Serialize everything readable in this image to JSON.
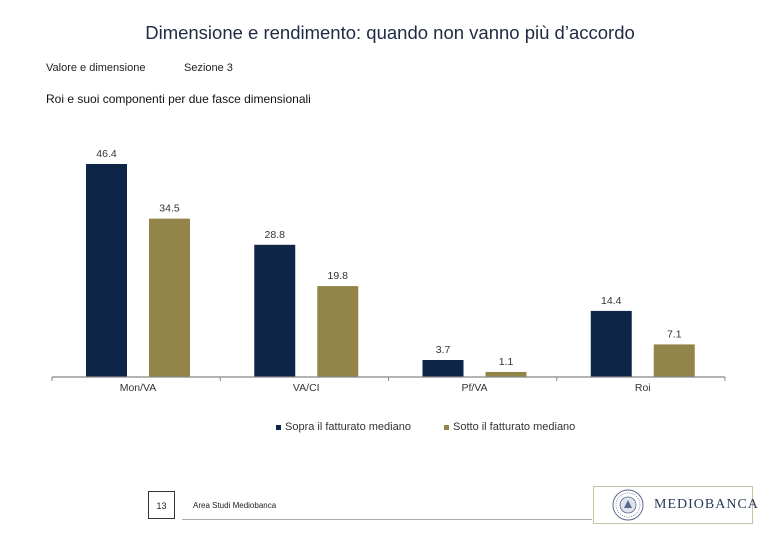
{
  "header": {
    "title": "Dimensione e rendimento: quando non vanno più d’accordo",
    "section_left": "Valore e dimensione",
    "section_right": "Sezione 3",
    "subtitle": "Roi e suoi componenti  per due fasce dimensionali"
  },
  "colors": {
    "series1": "#0d2546",
    "series2": "#938549",
    "axis": "#888888"
  },
  "chart_data": {
    "type": "bar",
    "title": "Roi e suoi componenti per due fasce dimensionali",
    "categories": [
      "Mon/VA",
      "VA/CI",
      "Pf/VA",
      "Roi"
    ],
    "series": [
      {
        "name": "Sopra il fatturato mediano",
        "values": [
          46.4,
          28.8,
          3.7,
          14.4
        ],
        "labels": [
          "46.4",
          "28.8",
          "3.7",
          "14.4"
        ]
      },
      {
        "name": "Sotto il fatturato mediano",
        "values": [
          34.5,
          19.8,
          1.1,
          7.1
        ],
        "labels": [
          "34.5",
          "19.8",
          "1.1",
          "7.1"
        ]
      }
    ],
    "ylim": [
      0,
      50
    ],
    "xlabel": "",
    "ylabel": "",
    "legend": "bottom-center",
    "grid": false
  },
  "footer": {
    "page_number": "13",
    "text": "Area Studi Mediobanca",
    "brand": "MEDIOBANCA"
  }
}
